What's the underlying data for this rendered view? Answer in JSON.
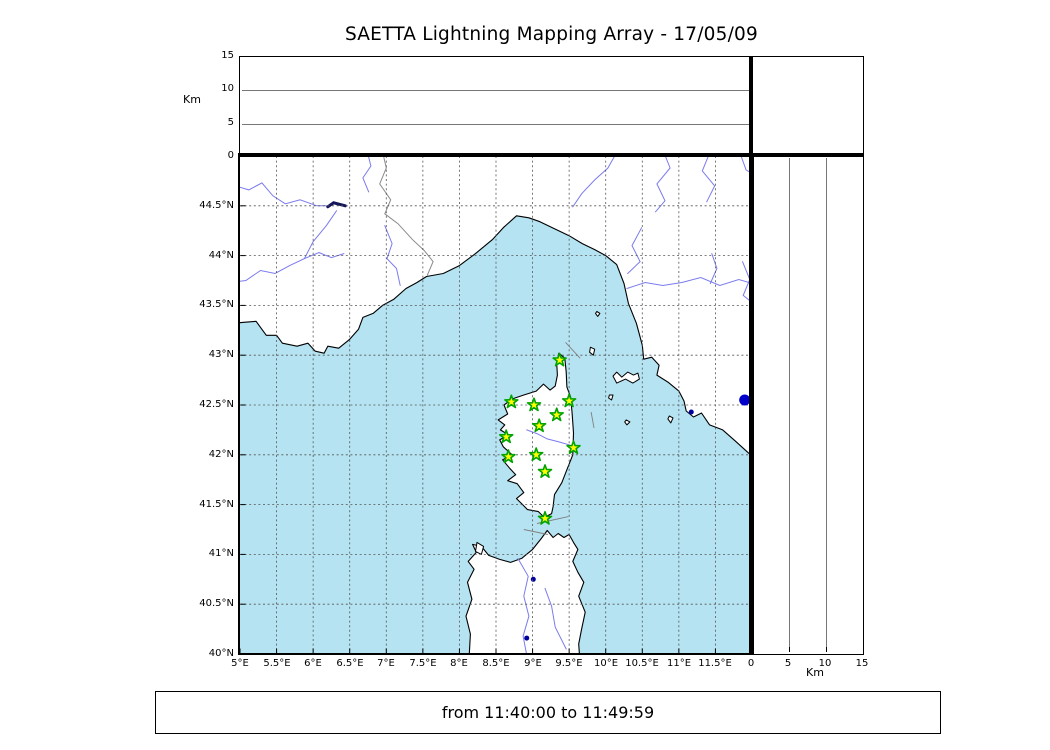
{
  "figure": {
    "title": "SAETTA Lightning Mapping Array - 17/05/09",
    "footer_text": "from 11:40:00 to 11:49:59"
  },
  "altitude_axis": {
    "unit_label": "Km",
    "max": 15,
    "ticks": [
      {
        "value": 0,
        "label": "0"
      },
      {
        "value": 5,
        "label": "5"
      },
      {
        "value": 10,
        "label": "10"
      },
      {
        "value": 15,
        "label": "15"
      }
    ],
    "gridlines": [
      5,
      10
    ]
  },
  "map": {
    "lon_min": 5,
    "lon_max": 12,
    "lat_min": 40,
    "lat_max": 45,
    "grid_step": 0.5,
    "lon_ticks": [
      {
        "value": 5,
        "label": "5°E"
      },
      {
        "value": 5.5,
        "label": "5.5°E"
      },
      {
        "value": 6,
        "label": "6°E"
      },
      {
        "value": 6.5,
        "label": "6.5°E"
      },
      {
        "value": 7,
        "label": "7°E"
      },
      {
        "value": 7.5,
        "label": "7.5°E"
      },
      {
        "value": 8,
        "label": "8°E"
      },
      {
        "value": 8.5,
        "label": "8.5°E"
      },
      {
        "value": 9,
        "label": "9°E"
      },
      {
        "value": 9.5,
        "label": "9.5°E"
      },
      {
        "value": 10,
        "label": "10°E"
      },
      {
        "value": 10.5,
        "label": "10.5°E"
      },
      {
        "value": 11,
        "label": "11°E"
      },
      {
        "value": 11.5,
        "label": "11.5°E"
      }
    ],
    "lat_ticks": [
      {
        "value": 44.5,
        "label": "44.5°N"
      },
      {
        "value": 44,
        "label": "44°N"
      },
      {
        "value": 43.5,
        "label": "43.5°N"
      },
      {
        "value": 43,
        "label": "43°N"
      },
      {
        "value": 42.5,
        "label": "42.5°N"
      },
      {
        "value": 42,
        "label": "42°N"
      },
      {
        "value": 41.5,
        "label": "41.5°N"
      },
      {
        "value": 41,
        "label": "41°N"
      },
      {
        "value": 40.5,
        "label": "40.5°N"
      },
      {
        "value": 40,
        "label": "40°N"
      }
    ],
    "colors": {
      "sea": "#b5e3f2",
      "land": "#ffffff",
      "coast": "#000000",
      "river": "#7b7bee",
      "boundary": "#8a8a8a",
      "grid": "#555555",
      "lake": "#0000a0",
      "sea_line": "#808080",
      "station_fill": "#ffff00",
      "station_edge": "#00a300",
      "extra_marker": "#0000cc",
      "panel_grid": "#777777"
    },
    "stations": [
      [
        9.37,
        42.95
      ],
      [
        8.71,
        42.53
      ],
      [
        9.02,
        42.5
      ],
      [
        9.5,
        42.54
      ],
      [
        9.33,
        42.4
      ],
      [
        9.09,
        42.29
      ],
      [
        8.64,
        42.18
      ],
      [
        9.56,
        42.07
      ],
      [
        9.05,
        42.0
      ],
      [
        8.67,
        41.98
      ],
      [
        9.17,
        41.83
      ],
      [
        9.17,
        41.36
      ]
    ],
    "extra_marker": {
      "lon": 11.9,
      "lat": 42.55,
      "radius": 5.5
    },
    "land_polygons": {
      "mainland": [
        [
          4.8,
          43.31
        ],
        [
          5.05,
          43.33
        ],
        [
          5.22,
          43.34
        ],
        [
          5.3,
          43.26
        ],
        [
          5.36,
          43.2
        ],
        [
          5.5,
          43.2
        ],
        [
          5.58,
          43.12
        ],
        [
          5.78,
          43.09
        ],
        [
          5.93,
          43.12
        ],
        [
          6.03,
          43.04
        ],
        [
          6.15,
          43.02
        ],
        [
          6.2,
          43.09
        ],
        [
          6.35,
          43.07
        ],
        [
          6.5,
          43.16
        ],
        [
          6.62,
          43.26
        ],
        [
          6.68,
          43.38
        ],
        [
          6.82,
          43.42
        ],
        [
          6.95,
          43.5
        ],
        [
          7.1,
          43.56
        ],
        [
          7.27,
          43.67
        ],
        [
          7.42,
          43.73
        ],
        [
          7.55,
          43.79
        ],
        [
          7.78,
          43.82
        ],
        [
          8.0,
          43.9
        ],
        [
          8.22,
          44.02
        ],
        [
          8.45,
          44.16
        ],
        [
          8.6,
          44.28
        ],
        [
          8.78,
          44.4
        ],
        [
          8.95,
          44.38
        ],
        [
          9.1,
          44.34
        ],
        [
          9.3,
          44.27
        ],
        [
          9.5,
          44.2
        ],
        [
          9.68,
          44.12
        ],
        [
          9.85,
          44.06
        ],
        [
          10.0,
          44.0
        ],
        [
          10.15,
          43.91
        ],
        [
          10.25,
          43.72
        ],
        [
          10.31,
          43.52
        ],
        [
          10.42,
          43.32
        ],
        [
          10.5,
          43.1
        ],
        [
          10.52,
          42.96
        ],
        [
          10.63,
          42.98
        ],
        [
          10.73,
          42.9
        ],
        [
          10.7,
          42.8
        ],
        [
          10.85,
          42.73
        ],
        [
          11.0,
          42.64
        ],
        [
          11.07,
          42.54
        ],
        [
          11.1,
          42.44
        ],
        [
          11.2,
          42.38
        ],
        [
          11.31,
          42.42
        ],
        [
          11.42,
          42.3
        ],
        [
          11.6,
          42.25
        ],
        [
          11.77,
          42.14
        ],
        [
          11.95,
          42.02
        ],
        [
          12.1,
          41.93
        ],
        [
          12.3,
          41.85
        ],
        [
          12.3,
          45.2
        ],
        [
          4.8,
          45.2
        ]
      ],
      "corsica": [
        [
          9.36,
          43.02
        ],
        [
          9.44,
          42.97
        ],
        [
          9.46,
          42.83
        ],
        [
          9.47,
          42.68
        ],
        [
          9.52,
          42.58
        ],
        [
          9.54,
          42.42
        ],
        [
          9.56,
          42.22
        ],
        [
          9.55,
          42.0
        ],
        [
          9.47,
          41.85
        ],
        [
          9.4,
          41.72
        ],
        [
          9.3,
          41.6
        ],
        [
          9.28,
          41.48
        ],
        [
          9.26,
          41.41
        ],
        [
          9.16,
          41.37
        ],
        [
          9.08,
          41.43
        ],
        [
          8.93,
          41.45
        ],
        [
          8.85,
          41.51
        ],
        [
          8.78,
          41.56
        ],
        [
          8.88,
          41.62
        ],
        [
          8.79,
          41.71
        ],
        [
          8.66,
          41.74
        ],
        [
          8.77,
          41.8
        ],
        [
          8.68,
          41.87
        ],
        [
          8.59,
          41.95
        ],
        [
          8.72,
          42.0
        ],
        [
          8.6,
          42.08
        ],
        [
          8.55,
          42.15
        ],
        [
          8.67,
          42.2
        ],
        [
          8.56,
          42.25
        ],
        [
          8.62,
          42.3
        ],
        [
          8.53,
          42.35
        ],
        [
          8.66,
          42.41
        ],
        [
          8.61,
          42.5
        ],
        [
          8.72,
          42.56
        ],
        [
          8.88,
          42.6
        ],
        [
          9.05,
          42.64
        ],
        [
          9.15,
          42.71
        ],
        [
          9.24,
          42.65
        ],
        [
          9.31,
          42.69
        ],
        [
          9.34,
          42.8
        ],
        [
          9.33,
          42.92
        ]
      ],
      "sardinia": [
        [
          8.12,
          39.8
        ],
        [
          8.15,
          40.2
        ],
        [
          8.09,
          40.38
        ],
        [
          8.17,
          40.55
        ],
        [
          8.11,
          40.72
        ],
        [
          8.2,
          40.85
        ],
        [
          8.12,
          40.93
        ],
        [
          8.23,
          41.02
        ],
        [
          8.18,
          41.1
        ],
        [
          8.3,
          41.08
        ],
        [
          8.4,
          40.99
        ],
        [
          8.55,
          40.95
        ],
        [
          8.7,
          40.92
        ],
        [
          8.85,
          40.96
        ],
        [
          9.0,
          41.05
        ],
        [
          9.12,
          41.16
        ],
        [
          9.2,
          41.24
        ],
        [
          9.28,
          41.17
        ],
        [
          9.35,
          41.21
        ],
        [
          9.43,
          41.17
        ],
        [
          9.5,
          41.2
        ],
        [
          9.56,
          41.12
        ],
        [
          9.62,
          41.05
        ],
        [
          9.55,
          40.93
        ],
        [
          9.62,
          40.82
        ],
        [
          9.7,
          40.72
        ],
        [
          9.63,
          40.58
        ],
        [
          9.72,
          40.42
        ],
        [
          9.67,
          40.25
        ],
        [
          9.63,
          40.1
        ],
        [
          9.66,
          39.8
        ]
      ],
      "islands": [
        [
          [
            8.24,
            41.12
          ],
          [
            8.33,
            41.08
          ],
          [
            8.3,
            41.0
          ],
          [
            8.22,
            41.03
          ]
        ],
        [
          [
            10.1,
            42.79
          ],
          [
            10.15,
            42.83
          ],
          [
            10.22,
            42.78
          ],
          [
            10.3,
            42.83
          ],
          [
            10.38,
            42.8
          ],
          [
            10.44,
            42.82
          ],
          [
            10.46,
            42.76
          ],
          [
            10.37,
            42.72
          ],
          [
            10.27,
            42.76
          ],
          [
            10.15,
            42.72
          ]
        ],
        [
          [
            9.79,
            43.08
          ],
          [
            9.85,
            43.06
          ],
          [
            9.83,
            43.0
          ],
          [
            9.78,
            43.03
          ]
        ],
        [
          [
            9.88,
            43.44
          ],
          [
            9.92,
            43.42
          ],
          [
            9.89,
            43.39
          ],
          [
            9.86,
            43.42
          ]
        ],
        [
          [
            10.05,
            42.6
          ],
          [
            10.1,
            42.6
          ],
          [
            10.08,
            42.55
          ],
          [
            10.04,
            42.57
          ]
        ],
        [
          [
            10.28,
            42.35
          ],
          [
            10.33,
            42.33
          ],
          [
            10.29,
            42.3
          ],
          [
            10.26,
            42.33
          ]
        ],
        [
          [
            10.87,
            42.39
          ],
          [
            10.92,
            42.37
          ],
          [
            10.89,
            42.32
          ],
          [
            10.85,
            42.36
          ]
        ]
      ]
    },
    "rivers": [
      [
        [
          4.8,
          44.73
        ],
        [
          5.12,
          44.66
        ],
        [
          5.3,
          44.73
        ],
        [
          5.45,
          44.6
        ],
        [
          5.62,
          44.52
        ],
        [
          5.82,
          44.56
        ],
        [
          6.05,
          44.5
        ],
        [
          6.22,
          44.5
        ]
      ],
      [
        [
          6.32,
          44.45
        ],
        [
          6.18,
          44.3
        ],
        [
          6.0,
          44.14
        ],
        [
          5.88,
          43.97
        ],
        [
          5.68,
          43.9
        ],
        [
          5.48,
          43.82
        ],
        [
          5.28,
          43.85
        ],
        [
          5.08,
          43.75
        ],
        [
          4.85,
          43.73
        ]
      ],
      [
        [
          5.88,
          43.97
        ],
        [
          6.08,
          44.03
        ],
        [
          6.25,
          43.98
        ],
        [
          6.42,
          44.02
        ]
      ],
      [
        [
          6.98,
          44.3
        ],
        [
          7.08,
          44.12
        ],
        [
          7.01,
          43.97
        ],
        [
          7.14,
          43.87
        ],
        [
          7.19,
          43.7
        ]
      ],
      [
        [
          6.72,
          45.1
        ],
        [
          6.79,
          44.9
        ],
        [
          6.68,
          44.78
        ],
        [
          6.76,
          44.64
        ]
      ],
      [
        [
          10.2,
          45.1
        ],
        [
          10.03,
          44.88
        ],
        [
          9.85,
          44.76
        ],
        [
          9.67,
          44.62
        ],
        [
          9.55,
          44.49
        ]
      ],
      [
        [
          10.76,
          45.1
        ],
        [
          10.88,
          44.88
        ],
        [
          10.7,
          44.72
        ],
        [
          10.81,
          44.55
        ],
        [
          10.68,
          44.44
        ]
      ],
      [
        [
          11.46,
          45.1
        ],
        [
          11.32,
          44.85
        ],
        [
          11.49,
          44.7
        ],
        [
          11.38,
          44.54
        ]
      ],
      [
        [
          11.8,
          45.1
        ],
        [
          11.92,
          44.86
        ],
        [
          12.1,
          44.78
        ]
      ],
      [
        [
          10.49,
          44.28
        ],
        [
          10.36,
          44.1
        ],
        [
          10.47,
          43.94
        ],
        [
          10.3,
          43.82
        ]
      ],
      [
        [
          12.1,
          43.7
        ],
        [
          11.82,
          43.76
        ],
        [
          11.56,
          43.7
        ],
        [
          11.3,
          43.78
        ],
        [
          11.04,
          43.73
        ],
        [
          10.78,
          43.7
        ],
        [
          10.54,
          43.73
        ],
        [
          10.29,
          43.67
        ]
      ],
      [
        [
          11.43,
          43.72
        ],
        [
          11.52,
          43.87
        ],
        [
          11.45,
          44.02
        ]
      ],
      [
        [
          11.87,
          43.94
        ],
        [
          11.97,
          43.76
        ],
        [
          11.88,
          43.6
        ],
        [
          12.05,
          43.5
        ]
      ],
      [
        [
          8.92,
          42.25
        ],
        [
          9.07,
          42.21
        ],
        [
          9.2,
          42.16
        ],
        [
          9.36,
          42.13
        ],
        [
          9.5,
          42.1
        ],
        [
          9.58,
          42.07
        ]
      ],
      [
        [
          8.8,
          40.96
        ],
        [
          8.94,
          40.78
        ],
        [
          8.88,
          40.58
        ],
        [
          8.95,
          40.38
        ],
        [
          8.87,
          40.18
        ],
        [
          8.93,
          39.95
        ]
      ],
      [
        [
          9.17,
          40.66
        ],
        [
          9.26,
          40.48
        ],
        [
          9.31,
          40.27
        ],
        [
          9.46,
          40.05
        ]
      ]
    ],
    "boundaries": [
      [
        [
          6.93,
          45.1
        ],
        [
          7.0,
          44.88
        ],
        [
          6.91,
          44.72
        ],
        [
          7.06,
          44.56
        ],
        [
          6.98,
          44.42
        ],
        [
          7.16,
          44.32
        ],
        [
          7.36,
          44.16
        ],
        [
          7.52,
          44.05
        ],
        [
          7.64,
          43.94
        ],
        [
          7.56,
          43.8
        ]
      ]
    ],
    "sea_lines": [
      [
        [
          9.45,
          43.13
        ],
        [
          9.65,
          42.97
        ]
      ],
      [
        [
          9.8,
          42.43
        ],
        [
          9.84,
          42.27
        ]
      ],
      [
        [
          8.88,
          41.25
        ],
        [
          9.21,
          41.2
        ]
      ],
      [
        [
          9.06,
          41.31
        ],
        [
          9.49,
          41.38
        ]
      ]
    ],
    "lakes_points": [
      [
        11.17,
        42.43
      ],
      [
        9.01,
        40.75
      ],
      [
        8.92,
        40.16
      ]
    ],
    "lake_strokes": [
      [
        [
          6.2,
          44.49
        ],
        [
          6.28,
          44.53
        ],
        [
          6.44,
          44.5
        ]
      ]
    ]
  }
}
